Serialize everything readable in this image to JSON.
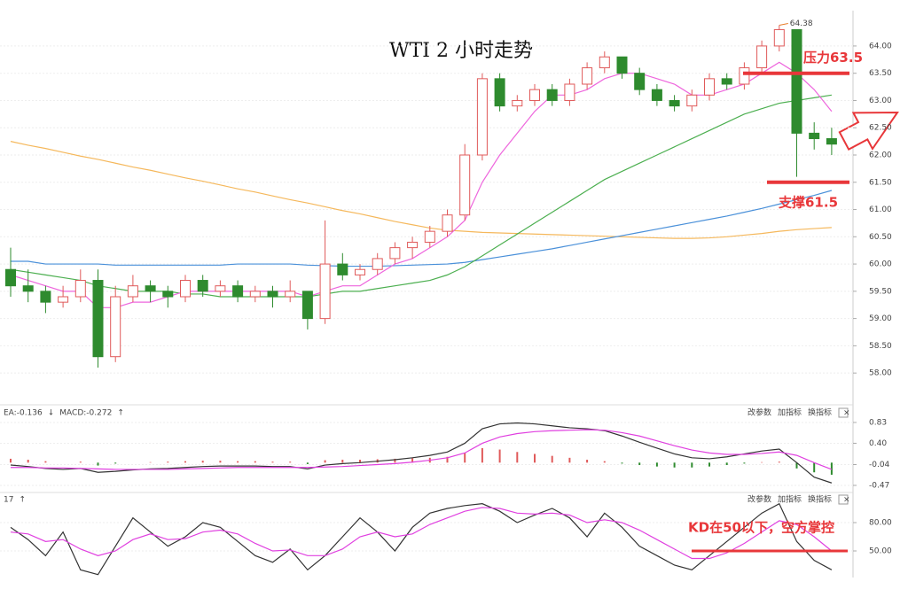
{
  "chart_data": [
    {
      "type": "candlestick",
      "title": "WTI 2 小时走势",
      "open": [
        59.9,
        59.6,
        59.5,
        59.3,
        59.4,
        59.7,
        58.3,
        59.4,
        59.6,
        59.5,
        59.4,
        59.7,
        59.5,
        59.6,
        59.4,
        59.5,
        59.4,
        59.5,
        59.0,
        60.0,
        59.8,
        59.9,
        60.1,
        60.3,
        60.4,
        60.6,
        60.9,
        62.0,
        63.4,
        62.9,
        63.0,
        63.2,
        63.0,
        63.3,
        63.6,
        63.8,
        63.5,
        63.2,
        63.0,
        62.9,
        63.1,
        63.4,
        63.3,
        63.6,
        64.0,
        64.3,
        62.4,
        62.3
      ],
      "high": [
        60.3,
        59.9,
        59.6,
        59.6,
        59.9,
        59.9,
        59.6,
        59.8,
        59.7,
        59.6,
        59.8,
        59.8,
        59.7,
        59.7,
        59.6,
        59.6,
        59.7,
        59.5,
        60.8,
        60.2,
        60.0,
        60.2,
        60.4,
        60.5,
        60.7,
        61.0,
        62.2,
        63.5,
        63.5,
        63.1,
        63.3,
        63.3,
        63.4,
        63.7,
        63.9,
        63.8,
        63.6,
        63.3,
        63.1,
        63.2,
        63.5,
        63.5,
        63.7,
        64.1,
        64.38,
        64.3,
        62.6,
        62.5
      ],
      "low": [
        59.4,
        59.3,
        59.1,
        59.2,
        59.3,
        58.1,
        58.2,
        59.3,
        59.3,
        59.2,
        59.3,
        59.4,
        59.4,
        59.3,
        59.3,
        59.2,
        59.3,
        58.8,
        58.9,
        59.7,
        59.7,
        59.8,
        60.0,
        60.1,
        60.3,
        60.5,
        60.8,
        61.9,
        62.8,
        62.8,
        62.9,
        62.9,
        62.9,
        63.2,
        63.5,
        63.4,
        63.1,
        62.9,
        62.8,
        62.8,
        63.0,
        63.2,
        63.2,
        63.5,
        63.9,
        61.6,
        62.1,
        62.0
      ],
      "close": [
        59.6,
        59.5,
        59.3,
        59.4,
        59.7,
        58.3,
        59.4,
        59.6,
        59.5,
        59.4,
        59.7,
        59.5,
        59.6,
        59.4,
        59.5,
        59.4,
        59.5,
        59.0,
        60.0,
        59.8,
        59.9,
        60.1,
        60.3,
        60.4,
        60.6,
        60.9,
        62.0,
        63.4,
        62.9,
        63.0,
        63.2,
        63.0,
        63.3,
        63.6,
        63.8,
        63.5,
        63.2,
        63.0,
        62.9,
        63.1,
        63.4,
        63.3,
        63.6,
        64.0,
        64.3,
        62.4,
        62.3,
        62.2
      ],
      "up_color": "#e05a5a",
      "down_color": "#2e8b2e",
      "series": [
        {
          "color": "#f5b85c",
          "values": [
            62.25,
            62.18,
            62.12,
            62.05,
            61.98,
            61.92,
            61.85,
            61.78,
            61.72,
            61.65,
            61.58,
            61.52,
            61.45,
            61.38,
            61.32,
            61.25,
            61.18,
            61.12,
            61.05,
            60.98,
            60.92,
            60.85,
            60.78,
            60.72,
            60.66,
            60.62,
            60.6,
            60.58,
            60.57,
            60.56,
            60.55,
            60.54,
            60.53,
            60.52,
            60.51,
            60.5,
            60.49,
            60.48,
            60.47,
            60.47,
            60.48,
            60.5,
            60.53,
            60.56,
            60.6,
            60.63,
            60.65,
            60.67
          ]
        },
        {
          "color": "#4a90d9",
          "values": [
            60.05,
            60.05,
            60.0,
            60.0,
            60.0,
            60.0,
            59.98,
            59.98,
            59.98,
            59.98,
            59.98,
            59.98,
            59.98,
            60.0,
            60.0,
            60.0,
            60.0,
            59.98,
            59.97,
            59.96,
            59.96,
            59.96,
            59.97,
            59.98,
            59.99,
            60.0,
            60.03,
            60.08,
            60.13,
            60.18,
            60.23,
            60.28,
            60.34,
            60.4,
            60.46,
            60.52,
            60.58,
            60.64,
            60.7,
            60.76,
            60.82,
            60.88,
            60.95,
            61.02,
            61.1,
            61.18,
            61.26,
            61.35
          ]
        },
        {
          "color": "#4caf50",
          "values": [
            59.9,
            59.85,
            59.8,
            59.75,
            59.7,
            59.6,
            59.55,
            59.5,
            59.5,
            59.5,
            59.45,
            59.45,
            59.4,
            59.4,
            59.4,
            59.4,
            59.4,
            59.4,
            59.45,
            59.5,
            59.5,
            59.55,
            59.6,
            59.65,
            59.7,
            59.8,
            59.95,
            60.15,
            60.35,
            60.55,
            60.75,
            60.95,
            61.15,
            61.35,
            61.55,
            61.7,
            61.85,
            62.0,
            62.15,
            62.3,
            62.45,
            62.6,
            62.75,
            62.85,
            62.95,
            63.0,
            63.05,
            63.1
          ]
        },
        {
          "color": "#ee66dd",
          "values": [
            59.8,
            59.7,
            59.6,
            59.5,
            59.5,
            59.2,
            59.2,
            59.3,
            59.3,
            59.4,
            59.5,
            59.5,
            59.5,
            59.5,
            59.5,
            59.5,
            59.5,
            59.4,
            59.5,
            59.6,
            59.6,
            59.8,
            60.0,
            60.1,
            60.3,
            60.5,
            60.8,
            61.5,
            62.0,
            62.4,
            62.8,
            63.1,
            63.1,
            63.2,
            63.4,
            63.5,
            63.5,
            63.4,
            63.3,
            63.1,
            63.1,
            63.2,
            63.3,
            63.5,
            63.7,
            63.5,
            63.2,
            62.8
          ]
        }
      ],
      "ylim": [
        57.45,
        64.6
      ],
      "yticks": [
        {
          "value": 64,
          "label": "64.00"
        },
        {
          "value": 63.5,
          "label": "63.50"
        },
        {
          "value": 63,
          "label": "63.00"
        },
        {
          "value": 62.5,
          "label": "62.50"
        },
        {
          "value": 62,
          "label": "62.00"
        },
        {
          "value": 61.5,
          "label": "61.50"
        },
        {
          "value": 61,
          "label": "61.00"
        },
        {
          "value": 60.5,
          "label": "60.50"
        },
        {
          "value": 60,
          "label": "60.00"
        },
        {
          "value": 59.5,
          "label": "59.50"
        },
        {
          "value": 59,
          "label": "59.00"
        },
        {
          "value": 58.5,
          "label": "58.50"
        },
        {
          "value": 58,
          "label": "58.00"
        }
      ],
      "peak_label": "64.38",
      "annotations": [
        {
          "text": "压力63.5",
          "value": 63.5
        },
        {
          "text": "支撑61.5",
          "value": 61.5
        }
      ]
    },
    {
      "type": "macd",
      "header": [
        "EA:-0.136",
        "↓",
        "MACD:-0.272",
        "↑"
      ],
      "buttons": [
        "改参数",
        "加指标",
        "换指标",
        "×"
      ],
      "hist": [
        0.08,
        0.06,
        0.03,
        0.0,
        0.02,
        -0.06,
        -0.02,
        0.0,
        0.01,
        0.02,
        0.03,
        0.04,
        0.04,
        0.03,
        0.03,
        0.02,
        0.02,
        -0.03,
        0.05,
        0.06,
        0.06,
        0.07,
        0.08,
        0.09,
        0.1,
        0.12,
        0.2,
        0.3,
        0.27,
        0.22,
        0.18,
        0.14,
        0.1,
        0.06,
        0.03,
        -0.02,
        -0.05,
        -0.08,
        -0.1,
        -0.1,
        -0.08,
        -0.05,
        -0.02,
        0.01,
        0.02,
        -0.12,
        -0.2,
        -0.25
      ],
      "series": [
        {
          "color": "#333333",
          "values": [
            -0.05,
            -0.08,
            -0.12,
            -0.14,
            -0.12,
            -0.2,
            -0.18,
            -0.15,
            -0.13,
            -0.12,
            -0.1,
            -0.08,
            -0.07,
            -0.07,
            -0.07,
            -0.08,
            -0.08,
            -0.13,
            -0.05,
            -0.02,
            0.0,
            0.03,
            0.06,
            0.1,
            0.15,
            0.22,
            0.4,
            0.7,
            0.8,
            0.82,
            0.8,
            0.76,
            0.72,
            0.7,
            0.66,
            0.55,
            0.42,
            0.3,
            0.18,
            0.1,
            0.08,
            0.12,
            0.18,
            0.24,
            0.28,
            0.0,
            -0.3,
            -0.42
          ]
        },
        {
          "color": "#e040e0",
          "values": [
            -0.1,
            -0.1,
            -0.11,
            -0.11,
            -0.12,
            -0.13,
            -0.14,
            -0.14,
            -0.14,
            -0.14,
            -0.13,
            -0.12,
            -0.11,
            -0.1,
            -0.1,
            -0.1,
            -0.1,
            -0.1,
            -0.09,
            -0.08,
            -0.06,
            -0.04,
            -0.02,
            0.01,
            0.05,
            0.1,
            0.2,
            0.4,
            0.53,
            0.6,
            0.64,
            0.66,
            0.67,
            0.68,
            0.67,
            0.62,
            0.55,
            0.45,
            0.35,
            0.26,
            0.2,
            0.17,
            0.17,
            0.19,
            0.22,
            0.15,
            0.0,
            -0.14
          ]
        }
      ],
      "up_color": "#e05a5a",
      "down_color": "#2e8b2e",
      "ylim": [
        -0.58,
        1.14
      ],
      "yticks": [
        0.83,
        {
          "value": 0.4,
          "label": "0.40"
        },
        -0.04,
        -0.47
      ]
    },
    {
      "type": "kd",
      "header": [
        "17",
        "↑"
      ],
      "buttons": [
        "改参数",
        "加指标",
        "换指标",
        "×"
      ],
      "series": [
        {
          "color": "#333333",
          "values": [
            75,
            62,
            45,
            70,
            30,
            25,
            55,
            85,
            70,
            55,
            65,
            80,
            75,
            60,
            45,
            38,
            52,
            30,
            45,
            65,
            85,
            70,
            50,
            75,
            90,
            95,
            98,
            100,
            92,
            80,
            88,
            95,
            85,
            65,
            90,
            75,
            55,
            45,
            35,
            30,
            45,
            60,
            75,
            90,
            100,
            60,
            40,
            30
          ]
        },
        {
          "color": "#e040e0",
          "values": [
            70,
            68,
            60,
            62,
            52,
            45,
            50,
            62,
            68,
            62,
            63,
            70,
            72,
            68,
            58,
            50,
            51,
            45,
            45,
            52,
            65,
            70,
            65,
            68,
            78,
            85,
            92,
            96,
            95,
            90,
            89,
            90,
            88,
            80,
            83,
            80,
            72,
            62,
            52,
            42,
            42,
            48,
            58,
            70,
            82,
            78,
            65,
            50
          ]
        }
      ],
      "ylim": [
        23.75,
        110
      ],
      "yticks": [
        {
          "value": 80,
          "label": "80.00"
        },
        {
          "value": 50,
          "label": "50.00"
        }
      ],
      "annotations": [
        {
          "text": "KD在50以下，空方掌控",
          "value": 50
        }
      ]
    }
  ]
}
